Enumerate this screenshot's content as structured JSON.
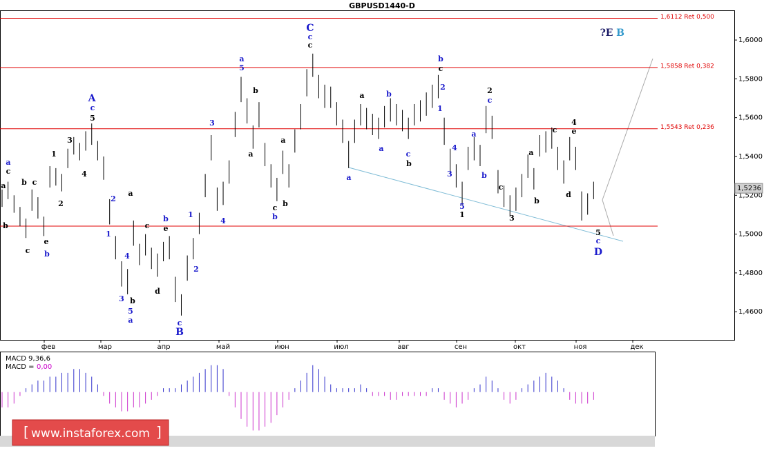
{
  "chart_data": {
    "type": "ohlc",
    "title": "GBPUSD1440-D",
    "ylim": [
      1.4455,
      1.6153
    ],
    "yticks": [
      {
        "value": 1.6,
        "label": "1,6000"
      },
      {
        "value": 1.58,
        "label": "1,5800"
      },
      {
        "value": 1.56,
        "label": "1,5600"
      },
      {
        "value": 1.54,
        "label": "1,5400"
      },
      {
        "value": 1.52,
        "label": "1,5200"
      },
      {
        "value": 1.5,
        "label": "1,5000"
      },
      {
        "value": 1.48,
        "label": "1,4800"
      },
      {
        "value": 1.46,
        "label": "1,4600"
      }
    ],
    "months": [
      "фев",
      "мар",
      "апр",
      "май",
      "июн",
      "июл",
      "авг",
      "сен",
      "окт",
      "ноя",
      "дек"
    ],
    "last_price": {
      "value": 1.5236,
      "label": "1,5236"
    },
    "levels": [
      {
        "value": 1.6112,
        "label": "1,6112 Ret 0,500"
      },
      {
        "value": 1.5858,
        "label": "1,5858 Ret 0,382"
      },
      {
        "value": 1.5543,
        "label": "1,5543 Ret 0,236"
      },
      {
        "value": 1.5041
      }
    ],
    "level_color": "#e00000",
    "bar_color": "#000000",
    "high": [
      1.523,
      1.527,
      1.52,
      1.514,
      1.508,
      1.523,
      1.519,
      1.509,
      1.535,
      1.534,
      1.531,
      1.544,
      1.55,
      1.547,
      1.553,
      1.557,
      1.548,
      1.54,
      1.518,
      1.499,
      1.486,
      1.482,
      1.507,
      1.495,
      1.5,
      1.493,
      1.49,
      1.496,
      1.499,
      1.478,
      1.469,
      1.489,
      1.498,
      1.511,
      1.531,
      1.551,
      1.524,
      1.527,
      1.538,
      1.563,
      1.581,
      1.57,
      1.556,
      1.568,
      1.547,
      1.536,
      1.529,
      1.543,
      1.536,
      1.554,
      1.567,
      1.585,
      1.593,
      1.582,
      1.577,
      1.576,
      1.568,
      1.559,
      1.548,
      1.559,
      1.567,
      1.565,
      1.562,
      1.56,
      1.566,
      1.57,
      1.567,
      1.564,
      1.56,
      1.567,
      1.569,
      1.573,
      1.577,
      1.582,
      1.56,
      1.544,
      1.536,
      1.527,
      1.545,
      1.55,
      1.546,
      1.566,
      1.561,
      1.533,
      1.525,
      1.52,
      1.524,
      1.531,
      1.541,
      1.534,
      1.551,
      1.553,
      1.555,
      1.545,
      1.538,
      1.55,
      1.545,
      1.522,
      1.521,
      1.527
    ],
    "low": [
      1.514,
      1.518,
      1.511,
      1.504,
      1.498,
      1.512,
      1.508,
      1.499,
      1.524,
      1.525,
      1.522,
      1.534,
      1.541,
      1.538,
      1.543,
      1.546,
      1.538,
      1.528,
      1.505,
      1.487,
      1.473,
      1.469,
      1.494,
      1.484,
      1.489,
      1.482,
      1.478,
      1.486,
      1.487,
      1.465,
      1.458,
      1.476,
      1.487,
      1.5,
      1.519,
      1.538,
      1.512,
      1.515,
      1.526,
      1.55,
      1.568,
      1.557,
      1.544,
      1.555,
      1.535,
      1.524,
      1.517,
      1.531,
      1.524,
      1.542,
      1.554,
      1.571,
      1.581,
      1.57,
      1.565,
      1.565,
      1.556,
      1.547,
      1.534,
      1.547,
      1.556,
      1.554,
      1.551,
      1.549,
      1.555,
      1.558,
      1.556,
      1.553,
      1.549,
      1.556,
      1.558,
      1.561,
      1.565,
      1.57,
      1.546,
      1.531,
      1.524,
      1.515,
      1.533,
      1.538,
      1.535,
      1.552,
      1.549,
      1.521,
      1.514,
      1.509,
      1.512,
      1.519,
      1.529,
      1.523,
      1.54,
      1.542,
      1.544,
      1.533,
      1.526,
      1.538,
      1.533,
      1.507,
      1.51,
      1.518
    ],
    "annotations": [
      {
        "text": "a",
        "color": "#1a1acc"
      },
      {
        "text": "c",
        "color": "#000000"
      },
      {
        "text": "a",
        "color": "#000000"
      },
      {
        "text": "b",
        "color": "#000000"
      },
      {
        "text": "c",
        "color": "#000000"
      },
      {
        "text": "b",
        "color": "#000000"
      },
      {
        "text": "c",
        "color": "#000000"
      },
      {
        "text": "e",
        "color": "#000000"
      },
      {
        "text": "b",
        "color": "#1a1acc"
      },
      {
        "text": "1",
        "color": "#000000"
      },
      {
        "text": "2",
        "color": "#000000"
      },
      {
        "text": "3",
        "color": "#000000"
      },
      {
        "text": "4",
        "color": "#000000"
      },
      {
        "text": "5",
        "color": "#000000"
      },
      {
        "text": "A",
        "color": "#1a1acc"
      },
      {
        "text": "c",
        "color": "#1a1acc"
      },
      {
        "text": "2",
        "color": "#1a1acc"
      },
      {
        "text": "1",
        "color": "#1a1acc"
      },
      {
        "text": "a",
        "color": "#000000"
      },
      {
        "text": "c",
        "color": "#000000"
      },
      {
        "text": "4",
        "color": "#1a1acc"
      },
      {
        "text": "3",
        "color": "#1a1acc"
      },
      {
        "text": "b",
        "color": "#000000"
      },
      {
        "text": "5",
        "color": "#1a1acc"
      },
      {
        "text": "a",
        "color": "#1a1acc"
      },
      {
        "text": "d",
        "color": "#000000"
      },
      {
        "text": "b",
        "color": "#1a1acc"
      },
      {
        "text": "e",
        "color": "#000000"
      },
      {
        "text": "1",
        "color": "#1a1acc"
      },
      {
        "text": "2",
        "color": "#1a1acc"
      },
      {
        "text": "c",
        "color": "#1a1acc"
      },
      {
        "text": "B",
        "color": "#1a1acc"
      },
      {
        "text": "3",
        "color": "#1a1acc"
      },
      {
        "text": "4",
        "color": "#1a1acc"
      },
      {
        "text": "a",
        "color": "#1a1acc"
      },
      {
        "text": "5",
        "color": "#1a1acc"
      },
      {
        "text": "b",
        "color": "#000000"
      },
      {
        "text": "a",
        "color": "#000000"
      },
      {
        "text": "a",
        "color": "#000000"
      },
      {
        "text": "c",
        "color": "#000000"
      },
      {
        "text": "b",
        "color": "#1a1acc"
      },
      {
        "text": "b",
        "color": "#000000"
      },
      {
        "text": "C",
        "color": "#1a1acc"
      },
      {
        "text": "c",
        "color": "#1a1acc"
      },
      {
        "text": "c",
        "color": "#000000"
      },
      {
        "text": "a",
        "color": "#1a1acc"
      },
      {
        "text": "a",
        "color": "#000000"
      },
      {
        "text": "b",
        "color": "#1a1acc"
      },
      {
        "text": "a",
        "color": "#1a1acc"
      },
      {
        "text": "c",
        "color": "#1a1acc"
      },
      {
        "text": "b",
        "color": "#000000"
      },
      {
        "text": "b",
        "color": "#1a1acc"
      },
      {
        "text": "c",
        "color": "#000000"
      },
      {
        "text": "2",
        "color": "#1a1acc"
      },
      {
        "text": "1",
        "color": "#1a1acc"
      },
      {
        "text": "4",
        "color": "#1a1acc"
      },
      {
        "text": "3",
        "color": "#1a1acc"
      },
      {
        "text": "5",
        "color": "#1a1acc"
      },
      {
        "text": "1",
        "color": "#000000"
      },
      {
        "text": "a",
        "color": "#1a1acc"
      },
      {
        "text": "b",
        "color": "#1a1acc"
      },
      {
        "text": "2",
        "color": "#000000"
      },
      {
        "text": "c",
        "color": "#1a1acc"
      },
      {
        "text": "c",
        "color": "#000000"
      },
      {
        "text": "3",
        "color": "#000000"
      },
      {
        "text": "a",
        "color": "#000000"
      },
      {
        "text": "b",
        "color": "#000000"
      },
      {
        "text": "c",
        "color": "#000000"
      },
      {
        "text": "d",
        "color": "#000000"
      },
      {
        "text": "4",
        "color": "#000000"
      },
      {
        "text": "e",
        "color": "#000000"
      },
      {
        "text": "5",
        "color": "#000000"
      },
      {
        "text": "c",
        "color": "#1a1acc"
      },
      {
        "text": "D",
        "color": "#1a1acc"
      },
      {
        "text": "?E",
        "color": "#1a1a66"
      },
      {
        "text": "B",
        "color": "#3399cc"
      }
    ],
    "macd": {
      "label": "MACD 9,36,6",
      "value_prefix": "MACD =",
      "value_text": "0,00",
      "value_color": "#cc00cc",
      "ylim": [
        -0.011,
        0.01
      ],
      "positive_color": "#3333cc",
      "negative_color": "#cc33cc",
      "values": [
        -0.004,
        -0.004,
        -0.003,
        -0.001,
        0.001,
        0.002,
        0.003,
        0.003,
        0.004,
        0.004,
        0.005,
        0.005,
        0.006,
        0.006,
        0.005,
        0.004,
        0.002,
        -0.001,
        -0.003,
        -0.004,
        -0.005,
        -0.005,
        -0.004,
        -0.004,
        -0.003,
        -0.002,
        -0.001,
        0.001,
        0.001,
        0.001,
        0.002,
        0.003,
        0.004,
        0.005,
        0.006,
        0.007,
        0.007,
        0.006,
        -0.001,
        -0.004,
        -0.007,
        -0.009,
        -0.01,
        -0.01,
        -0.009,
        -0.008,
        -0.006,
        -0.004,
        -0.002,
        0.001,
        0.003,
        0.005,
        0.007,
        0.006,
        0.004,
        0.002,
        0.001,
        0.001,
        0.001,
        0.001,
        0.002,
        0.001,
        -0.001,
        -0.001,
        -0.001,
        -0.002,
        -0.002,
        -0.001,
        -0.001,
        -0.001,
        -0.001,
        -0.001,
        0.001,
        0.001,
        -0.002,
        -0.003,
        -0.004,
        -0.003,
        -0.002,
        0.001,
        0.002,
        0.004,
        0.003,
        0.001,
        -0.002,
        -0.003,
        -0.002,
        0.001,
        0.002,
        0.003,
        0.004,
        0.005,
        0.004,
        0.003,
        0.001,
        -0.002,
        -0.003,
        -0.003,
        -0.003,
        -0.002
      ]
    },
    "watermark": "www.instaforex.com"
  }
}
